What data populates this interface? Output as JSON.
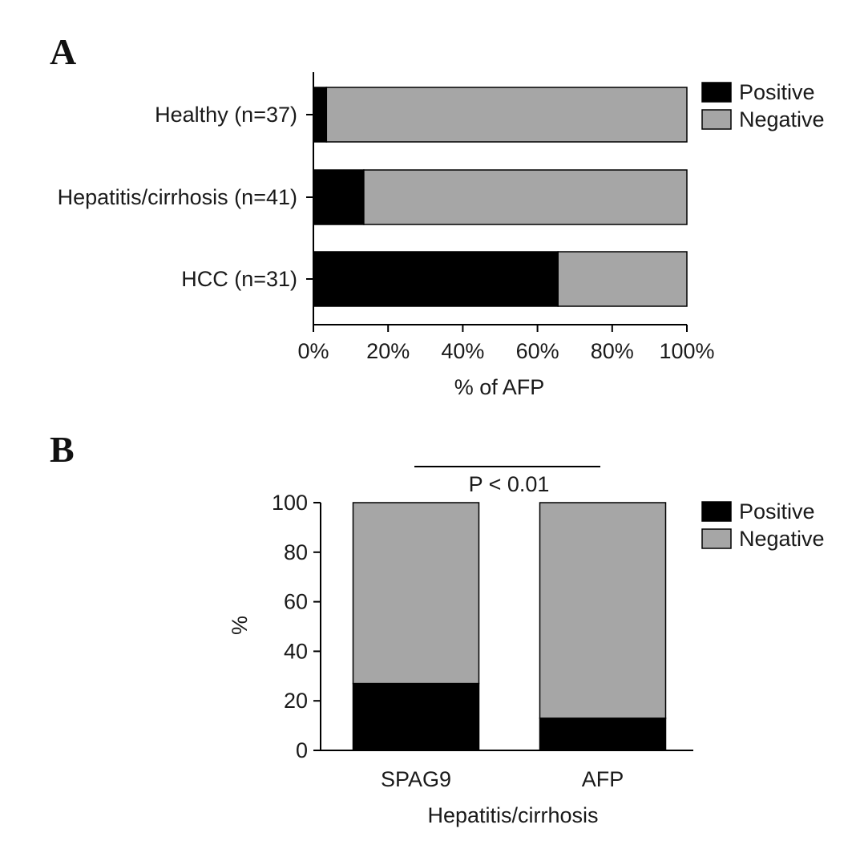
{
  "colors": {
    "positive": "#000000",
    "negative": "#a6a6a6",
    "axis": "#000000",
    "text": "#1a1a1a"
  },
  "chart_data": [
    {
      "panel": "A",
      "type": "bar",
      "orientation": "horizontal",
      "stacked": true,
      "categories": [
        "Healthy (n=37)",
        "Hepatitis/cirrhosis (n=41)",
        "HCC (n=31)"
      ],
      "series": [
        {
          "name": "Positive",
          "values": [
            3.5,
            13.5,
            65.5
          ]
        },
        {
          "name": "Negative",
          "values": [
            96.5,
            86.5,
            34.5
          ]
        }
      ],
      "xlabel": "% of AFP",
      "ylabel": "",
      "xlim": [
        0,
        100
      ],
      "xticks": [
        "0%",
        "20%",
        "40%",
        "60%",
        "80%",
        "100%"
      ],
      "grid": false,
      "legend": "top-right"
    },
    {
      "panel": "B",
      "type": "bar",
      "orientation": "vertical",
      "stacked": true,
      "categories": [
        "SPAG9",
        "AFP"
      ],
      "series": [
        {
          "name": "Positive",
          "values": [
            27,
            13
          ]
        },
        {
          "name": "Negative",
          "values": [
            73,
            87
          ]
        }
      ],
      "xlabel": "Hepatitis/cirrhosis",
      "ylabel": "%",
      "ylim": [
        0,
        100
      ],
      "yticks": [
        "0",
        "20",
        "40",
        "60",
        "80",
        "100"
      ],
      "annotation": "P < 0.01",
      "grid": false,
      "legend": "top-right"
    }
  ]
}
